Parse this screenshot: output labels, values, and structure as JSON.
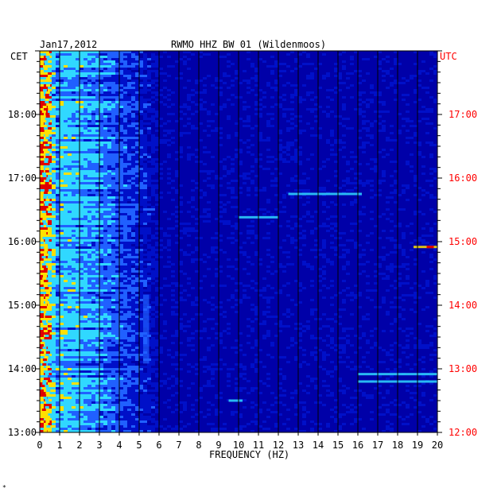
{
  "chart_data": {
    "type": "heatmap",
    "date": "Jan17,2012",
    "title": "RWMO HHZ BW 01 (Wildenmoos)",
    "left_axis_label": "CET",
    "right_axis_label": "UTC",
    "xlabel": "FREQUENCY (HZ)",
    "xlim": [
      0,
      20
    ],
    "x_ticks": [
      "0",
      "1",
      "2",
      "3",
      "4",
      "5",
      "6",
      "7",
      "8",
      "9",
      "10",
      "11",
      "12",
      "13",
      "14",
      "15",
      "16",
      "17",
      "18",
      "19",
      "20"
    ],
    "y_ticks_cet": [
      "18:00",
      "17:00",
      "16:00",
      "15:00",
      "14:00",
      "13:00"
    ],
    "y_ticks_utc": [
      "17:00",
      "16:00",
      "15:00",
      "14:00",
      "13:00",
      "12:00"
    ],
    "time_range_cet": [
      "13:00",
      "19:00"
    ],
    "colors": {
      "background": "#0000a8",
      "low": "#0010c8",
      "mid": "#2060ff",
      "cyan": "#30d8ff",
      "yellow": "#ffe000",
      "red": "#e00000",
      "axis_red": "#ff0000"
    },
    "features": [
      {
        "kind": "low_frequency_band",
        "freq_hz": [
          0.1,
          1.0
        ],
        "time_cet": [
          "13:00",
          "19:00"
        ],
        "intensity": "high"
      },
      {
        "kind": "narrow_line",
        "freq_hz": [
          18.8,
          20.0
        ],
        "time_cet": "15:55",
        "intensity": "high"
      },
      {
        "kind": "narrow_line",
        "freq_hz": [
          16.0,
          20.0
        ],
        "time_cet": "13:55",
        "intensity": "medium"
      },
      {
        "kind": "narrow_line",
        "freq_hz": [
          16.0,
          20.0
        ],
        "time_cet": "13:48",
        "intensity": "medium"
      },
      {
        "kind": "narrow_line",
        "freq_hz": [
          12.5,
          16.2
        ],
        "time_cet": "16:45",
        "intensity": "medium"
      },
      {
        "kind": "narrow_line",
        "freq_hz": [
          10.0,
          12.0
        ],
        "time_cet": "16:23",
        "intensity": "medium"
      },
      {
        "kind": "narrow_line",
        "freq_hz": [
          9.5,
          10.2
        ],
        "time_cet": "13:30",
        "intensity": "medium"
      },
      {
        "kind": "vertical_streak",
        "freq_hz": [
          5.2,
          5.5
        ],
        "time_cet": [
          "14:05",
          "15:10"
        ],
        "intensity": "medium"
      }
    ]
  },
  "footer_mark": "*"
}
